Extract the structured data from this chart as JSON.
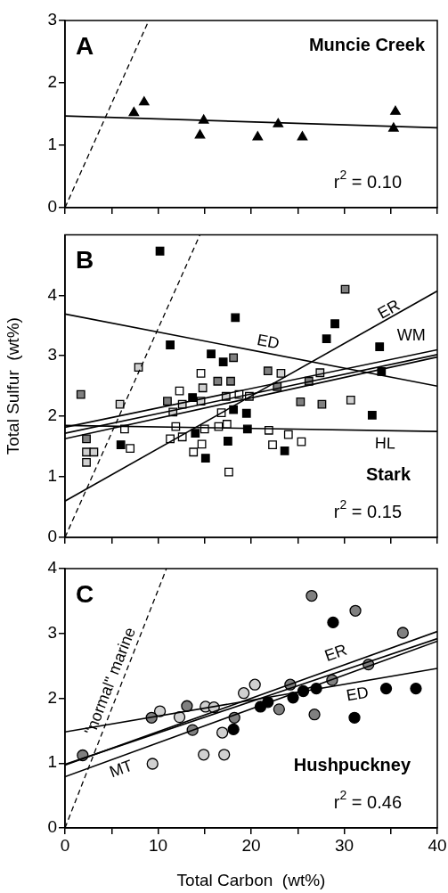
{
  "chart_data": [
    {
      "type": "scatter",
      "title": "Muncie Creek",
      "annotations": [
        "A",
        "r$^{2}$ = 0.10"
      ],
      "xlim": [
        0,
        40
      ],
      "xticks": [
        0,
        {
          "value": 5,
          "label": null
        },
        10,
        {
          "value": 15,
          "label": null
        },
        20,
        {
          "value": 25,
          "label": null
        },
        30,
        {
          "value": 35,
          "label": null
        },
        40
      ],
      "ylim": [
        0,
        3
      ],
      "yticks": [
        0,
        1,
        2,
        3
      ],
      "tick_labels": "y",
      "legend": false,
      "series": [
        {
          "type": "line",
          "marker": "none",
          "line_style": "dashed",
          "color": "#000000",
          "x": [
            0,
            9
          ],
          "values": [
            0,
            3
          ]
        },
        {
          "type": "line",
          "marker": "none",
          "line_style": "solid",
          "color": "#000000",
          "x": [
            0,
            40
          ],
          "values": [
            1.47,
            1.28
          ]
        },
        {
          "type": "scatter",
          "marker": "triangle",
          "color": "#000000",
          "x": [
            7.4,
            8.5,
            14.9,
            14.5,
            20.7,
            22.9,
            25.5,
            35.5,
            35.3
          ],
          "values": [
            1.52,
            1.69,
            1.4,
            1.16,
            1.13,
            1.34,
            1.13,
            1.54,
            1.27
          ]
        }
      ]
    },
    {
      "type": "scatter",
      "title": "Stark",
      "ylabel": "Total Sulfur  (wt%)",
      "annotations": [
        "B",
        "r$^{2}$ = 0.15"
      ],
      "xlim": [
        0,
        40
      ],
      "xticks": [
        0,
        {
          "value": 5,
          "label": null
        },
        10,
        {
          "value": 15,
          "label": null
        },
        20,
        {
          "value": 25,
          "label": null
        },
        30,
        {
          "value": 35,
          "label": null
        },
        40
      ],
      "ylim": [
        0,
        5
      ],
      "yticks": [
        0,
        1,
        2,
        3,
        4
      ],
      "tick_labels": "y",
      "legend": false,
      "series": [
        {
          "type": "line",
          "marker": "none",
          "line_style": "dashed",
          "color": "#000000",
          "x": [
            0,
            14.5
          ],
          "values": [
            0,
            5
          ]
        },
        {
          "type": "line",
          "name": "ED",
          "marker": "none",
          "line_style": "solid",
          "color": "#000000",
          "x": [
            0,
            40
          ],
          "values": [
            3.69,
            2.5
          ]
        },
        {
          "type": "line",
          "name": "ER",
          "marker": "none",
          "line_style": "solid",
          "color": "#000000",
          "x": [
            0,
            40
          ],
          "values": [
            0.6,
            4.07
          ]
        },
        {
          "type": "line",
          "name": "HL",
          "marker": "none",
          "line_style": "solid",
          "color": "#000000",
          "x": [
            0,
            40
          ],
          "values": [
            1.85,
            1.75
          ]
        },
        {
          "type": "line",
          "name": "WM",
          "marker": "none",
          "line_style": "solid",
          "color": "#000000",
          "x": [
            0,
            40
          ],
          "values": [
            1.82,
            3.1
          ]
        },
        {
          "type": "line",
          "marker": "none",
          "line_style": "solid",
          "color": "#000000",
          "x": [
            0,
            40
          ],
          "values": [
            1.72,
            3.02
          ]
        },
        {
          "type": "line",
          "marker": "none",
          "line_style": "solid",
          "color": "#000000",
          "x": [
            0,
            40
          ],
          "values": [
            1.63,
            2.98
          ]
        },
        {
          "type": "scatter",
          "marker": "square",
          "color": "#000000",
          "x": [
            10.2,
            11.3,
            18.3,
            29,
            28.1,
            33.8,
            15.7,
            17,
            34,
            33,
            19.5,
            18.1,
            13.7,
            19.6,
            17.5,
            15.1,
            23.6,
            14,
            6
          ],
          "values": [
            4.73,
            3.18,
            3.63,
            3.53,
            3.28,
            3.15,
            3.03,
            2.9,
            2.74,
            2.02,
            2.05,
            2.11,
            2.31,
            1.79,
            1.59,
            1.31,
            1.43,
            1.72,
            1.53
          ]
        },
        {
          "type": "scatter",
          "marker": "square",
          "color": "#808080",
          "x": [
            1.7,
            30.1,
            18.1,
            16.4,
            17.8,
            21.8,
            25.3,
            27.6,
            26.2,
            22.8,
            2.3,
            11
          ],
          "values": [
            2.36,
            4.1,
            2.97,
            2.58,
            2.58,
            2.75,
            2.24,
            2.2,
            2.58,
            2.49,
            1.63,
            2.25
          ]
        },
        {
          "type": "scatter",
          "marker": "square",
          "color": "#d0d0d0",
          "x": [
            7.9,
            5.9,
            2.3,
            2.3,
            3.1,
            11.6,
            12.6,
            14.8,
            14.6,
            17.3,
            23.2,
            27.4,
            30.7
          ],
          "values": [
            2.81,
            2.2,
            1.41,
            1.24,
            1.41,
            2.07,
            2.2,
            2.47,
            2.25,
            2.33,
            2.71,
            2.72,
            2.27
          ]
        },
        {
          "type": "scatter",
          "marker": "square",
          "color": "#ffffff",
          "x": [
            14.6,
            12.3,
            18.7,
            19.8,
            16.8,
            16.5,
            17.4,
            6.4,
            7,
            11.9,
            11.3,
            12.6,
            15,
            14.7,
            13.8,
            17.6,
            21.9,
            22.3,
            24,
            25.4
          ],
          "values": [
            2.71,
            2.42,
            2.36,
            2.33,
            2.06,
            1.83,
            1.87,
            1.79,
            1.47,
            1.83,
            1.63,
            1.66,
            1.79,
            1.54,
            1.41,
            1.08,
            1.77,
            1.53,
            1.7,
            1.58
          ]
        }
      ]
    },
    {
      "type": "scatter",
      "title": "Hushpuckney",
      "xlabel": "Total Carbon  (wt%)",
      "annotations": [
        "C",
        "r$^{2}$ = 0.46"
      ],
      "xlim": [
        0,
        40
      ],
      "xticks": [
        0,
        {
          "value": 5,
          "label": null
        },
        10,
        {
          "value": 15,
          "label": null
        },
        20,
        {
          "value": 25,
          "label": null
        },
        30,
        {
          "value": 35,
          "label": null
        },
        40
      ],
      "ylim": [
        0,
        4
      ],
      "yticks": [
        0,
        1,
        2,
        3,
        4
      ],
      "legend": false,
      "series": [
        {
          "type": "line",
          "name": "\"normal\" marine",
          "marker": "none",
          "line_style": "dashed",
          "color": "#000000",
          "x": [
            0,
            10.9
          ],
          "values": [
            0,
            4
          ]
        },
        {
          "type": "line",
          "name": "ED",
          "marker": "none",
          "line_style": "solid",
          "color": "#000000",
          "x": [
            0,
            40
          ],
          "values": [
            1.48,
            2.46
          ]
        },
        {
          "type": "line",
          "name": "ER",
          "marker": "none",
          "line_style": "solid",
          "color": "#000000",
          "x": [
            0,
            40
          ],
          "values": [
            0.97,
            3.03
          ]
        },
        {
          "type": "line",
          "marker": "none",
          "line_style": "solid",
          "color": "#000000",
          "x": [
            0,
            40
          ],
          "values": [
            0.98,
            2.92
          ]
        },
        {
          "type": "line",
          "name": "MT",
          "marker": "none",
          "line_style": "solid",
          "color": "#000000",
          "x": [
            0,
            40
          ],
          "values": [
            0.79,
            2.88
          ]
        },
        {
          "type": "scatter",
          "marker": "circle",
          "color": "#000000",
          "x": [
            28.8,
            34.5,
            37.7,
            31.1,
            27,
            25.6,
            24.5,
            21,
            21.8,
            18.1
          ],
          "values": [
            3.17,
            2.15,
            2.15,
            1.7,
            2.15,
            2.11,
            2.01,
            1.87,
            1.94,
            1.52
          ]
        },
        {
          "type": "scatter",
          "marker": "circle",
          "color": "#808080",
          "x": [
            26.5,
            31.2,
            36.3,
            32.6,
            28.7,
            24.2,
            26.8,
            23,
            18.2,
            13.1,
            13.7,
            9.3,
            1.9
          ],
          "values": [
            3.58,
            3.35,
            3.01,
            2.52,
            2.28,
            2.21,
            1.75,
            1.83,
            1.7,
            1.88,
            1.51,
            1.7,
            1.12
          ]
        },
        {
          "type": "scatter",
          "marker": "circle",
          "color": "#d0d0d0",
          "x": [
            10.2,
            12.3,
            15.1,
            16,
            19.2,
            20.4,
            16.9,
            14.9,
            17.1,
            9.4
          ],
          "values": [
            1.8,
            1.71,
            1.87,
            1.86,
            2.08,
            2.21,
            1.47,
            1.13,
            1.13,
            0.99
          ]
        }
      ]
    }
  ]
}
